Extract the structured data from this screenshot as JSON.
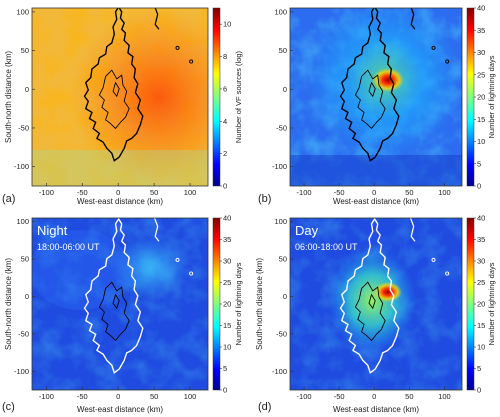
{
  "chart_data": [
    {
      "type": "heatmap",
      "panel_letter": "(a)",
      "xlabel": "West-east distance (km)",
      "ylabel": "South-north distance (km)",
      "xlim": [
        -120,
        125
      ],
      "ylim": [
        -125,
        105
      ],
      "x_ticks": [
        "-100",
        "-50",
        "0",
        "50",
        "100"
      ],
      "y_ticks": [
        "100",
        "50",
        "0",
        "-50",
        "-100"
      ],
      "colorbar": {
        "label": "Number of VF sources (log)",
        "range": [
          0,
          11
        ],
        "ticks": [
          "0",
          "2",
          "4",
          "6",
          "8",
          "10"
        ]
      },
      "overlay_title": "",
      "overlay_subtitle": ""
    },
    {
      "type": "heatmap",
      "panel_letter": "(b)",
      "xlabel": "West-east distance (km)",
      "ylabel": "",
      "xlim": [
        -120,
        125
      ],
      "ylim": [
        -125,
        105
      ],
      "x_ticks": [
        "-100",
        "-50",
        "0",
        "50",
        "100"
      ],
      "y_ticks": [
        "100",
        "50",
        "0",
        "-50",
        "-100"
      ],
      "colorbar": {
        "label": "Number of lightning days",
        "range": [
          0,
          40
        ],
        "ticks": [
          "0",
          "5",
          "10",
          "15",
          "20",
          "25",
          "30",
          "35",
          "40"
        ]
      },
      "overlay_title": "",
      "overlay_subtitle": ""
    },
    {
      "type": "heatmap",
      "panel_letter": "(c)",
      "xlabel": "West-east distance (km)",
      "ylabel": "South-north distance (km)",
      "xlim": [
        -120,
        125
      ],
      "ylim": [
        -125,
        105
      ],
      "x_ticks": [
        "-100",
        "-50",
        "0",
        "50",
        "100"
      ],
      "y_ticks": [
        "100",
        "50",
        "0",
        "-50",
        "-100"
      ],
      "colorbar": {
        "label": "Number of lightning days",
        "range": [
          0,
          40
        ],
        "ticks": [
          "0",
          "5",
          "10",
          "15",
          "20",
          "25",
          "30",
          "35",
          "40"
        ]
      },
      "overlay_title": "Night",
      "overlay_subtitle": "18:00-06:00 UT"
    },
    {
      "type": "heatmap",
      "panel_letter": "(d)",
      "xlabel": "West-east distance (km)",
      "ylabel": "South-north distance (km)",
      "xlim": [
        -120,
        125
      ],
      "ylim": [
        -125,
        105
      ],
      "x_ticks": [
        "-100",
        "-50",
        "0",
        "50",
        "100"
      ],
      "y_ticks": [
        "100",
        "50",
        "0",
        "-50",
        "-100"
      ],
      "colorbar": {
        "label": "Number of lightning days",
        "range": [
          0,
          40
        ],
        "ticks": [
          "0",
          "5",
          "10",
          "15",
          "20",
          "25",
          "30",
          "35",
          "40"
        ]
      },
      "overlay_title": "Day",
      "overlay_subtitle": "06:00-18:00 UT"
    }
  ],
  "colors": {
    "island_outline_a_b": "#000000",
    "island_outline_c_d": "#ffffff",
    "inner_contour": "#000000"
  }
}
